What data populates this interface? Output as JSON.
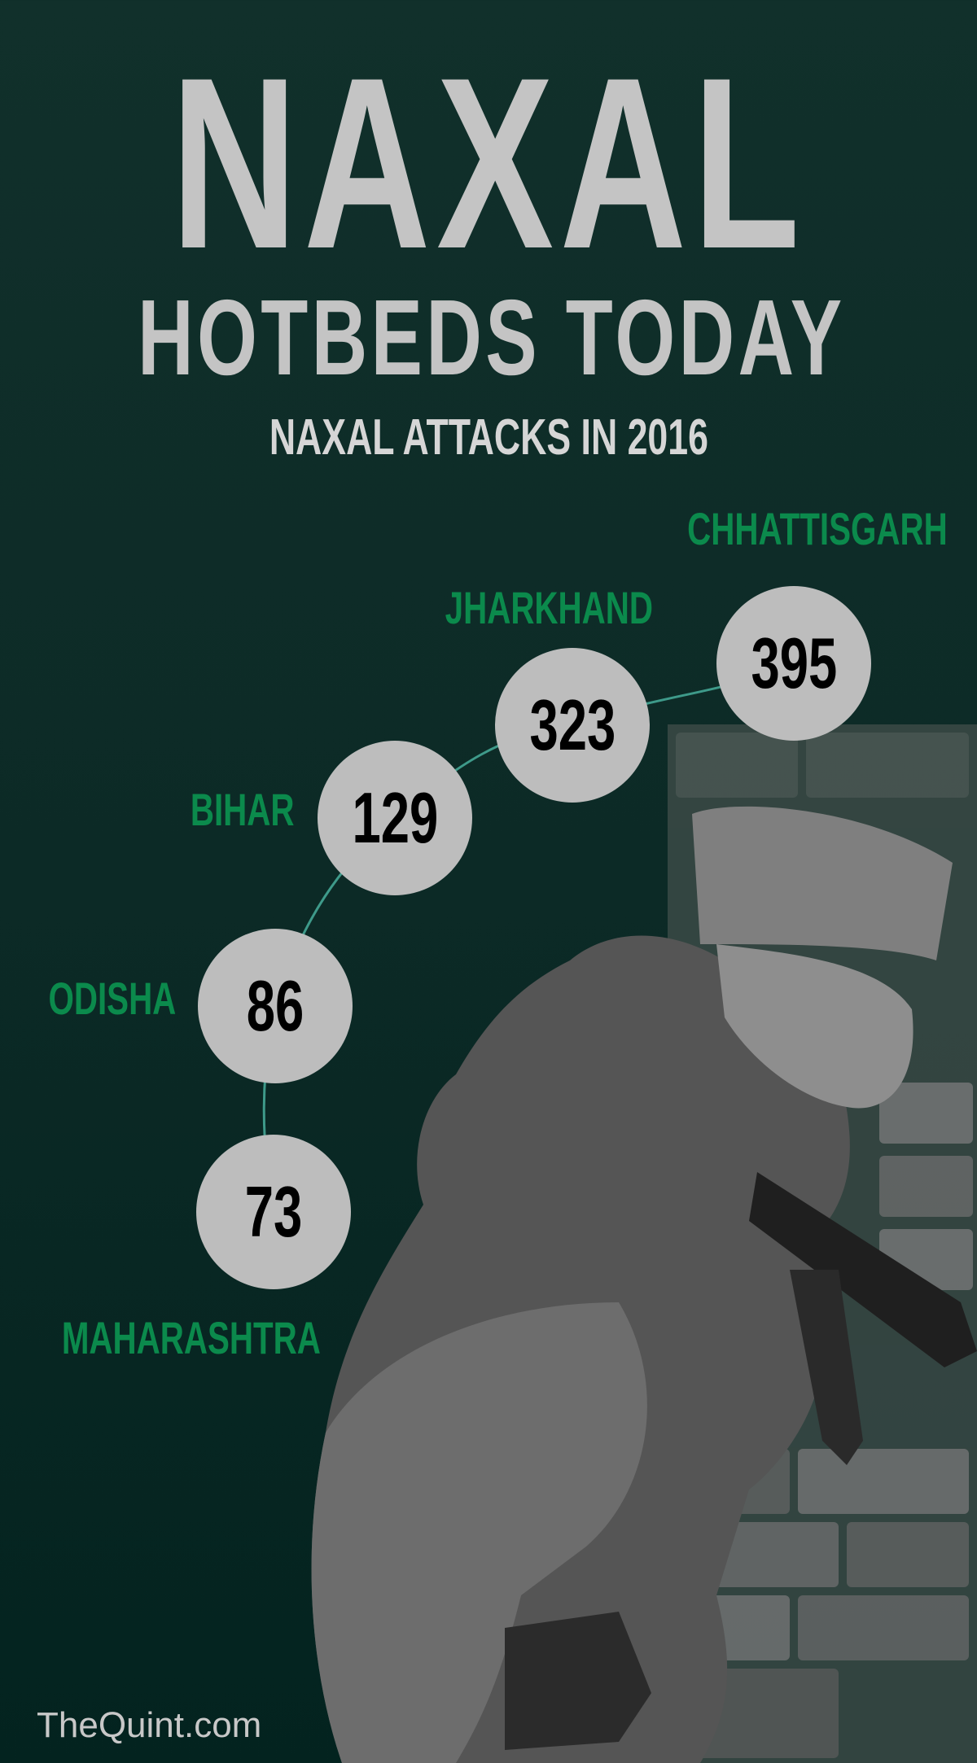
{
  "header": {
    "title_line1": "NAXAL",
    "title_line2": "HOTBEDS TODAY",
    "subtitle": "NAXAL ATTACKS IN 2016"
  },
  "chart_data": {
    "type": "table",
    "title": "NAXAL ATTACKS IN 2016",
    "categories": [
      "MAHARASHTRA",
      "ODISHA",
      "BIHAR",
      "JHARKHAND",
      "CHHATTISGARH"
    ],
    "values": [
      73,
      86,
      129,
      323,
      395
    ],
    "value_labels": [
      "73",
      "86",
      "129",
      "323",
      "395"
    ]
  },
  "colors": {
    "background": "#0c2a26",
    "label": "#0b8a4c",
    "circle": "#bdbdbd",
    "connector": "#3e9a8a",
    "title": "#c4c4c4"
  },
  "footer": {
    "brand": "TheQuint.com"
  }
}
